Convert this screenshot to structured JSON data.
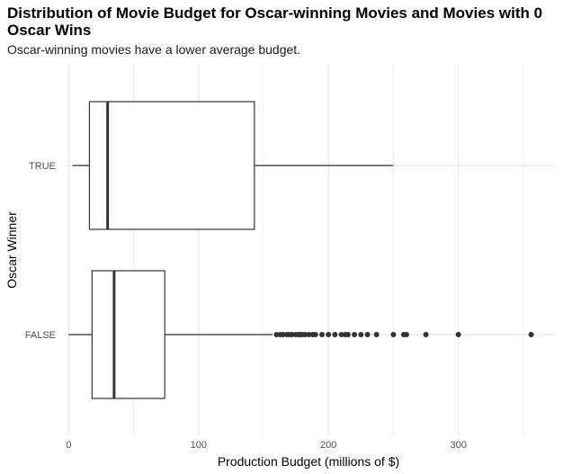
{
  "chart_data": {
    "type": "boxplot",
    "orientation": "horizontal",
    "title": "Distribution of Movie Budget for Oscar-winning Movies and Movies with 0 Oscar Wins",
    "subtitle": "Oscar-winning movies have a lower average budget.",
    "xlabel": "Production Budget (millions of $)",
    "ylabel": "Oscar Winner",
    "xlim": [
      -3,
      375
    ],
    "x_ticks": [
      0,
      100,
      200,
      300
    ],
    "grid": true,
    "categories": [
      "TRUE",
      "FALSE"
    ],
    "boxes": [
      {
        "category": "TRUE",
        "whisker_low": 3,
        "q1": 16,
        "median": 30,
        "q3": 143,
        "whisker_high": 250,
        "outliers": []
      },
      {
        "category": "FALSE",
        "whisker_low": 0,
        "q1": 18,
        "median": 35,
        "q3": 74,
        "whisker_high": 157,
        "outliers": [
          160,
          163,
          165,
          168,
          170,
          172,
          175,
          177,
          178,
          180,
          182,
          185,
          188,
          190,
          195,
          200,
          205,
          210,
          213,
          215,
          220,
          225,
          230,
          237,
          250,
          258,
          260,
          275,
          300,
          356
        ]
      }
    ],
    "colors": {
      "box_line": "#333333",
      "outlier": "#333333",
      "grid": "#ebebeb"
    }
  }
}
